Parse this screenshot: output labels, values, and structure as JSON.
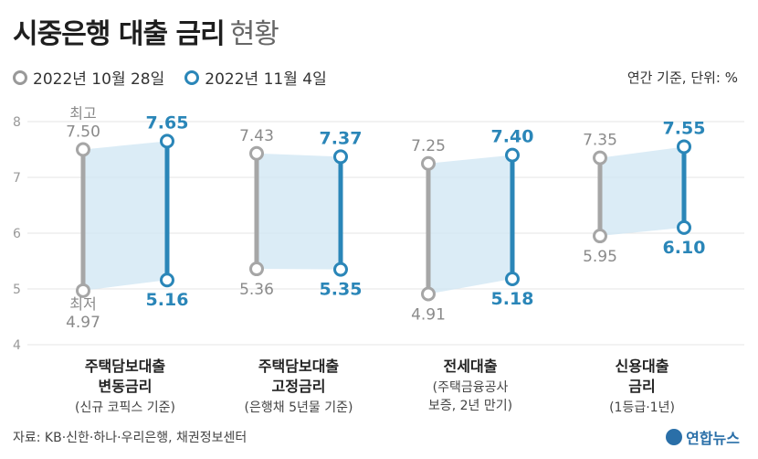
{
  "header": {
    "title": "시중은행 대출 금리",
    "subtitle": "현황"
  },
  "legend": {
    "before": "2022년 10월 28일",
    "after": "2022년 11월 4일"
  },
  "unit": "연간 기준, 단위: %",
  "footer": {
    "source": "자료: KB·신한·하나·우리은행, 채권정보센터",
    "logo": "연합뉴스"
  },
  "colors": {
    "before": "#a6a6a6",
    "after": "#2a86b8",
    "band": "#cfe6f3",
    "grid": "#e6e6e6"
  },
  "chart_data": {
    "type": "range",
    "ylim": [
      4,
      8
    ],
    "yticks": [
      "4",
      "5",
      "6",
      "7",
      "8"
    ],
    "high_label": "최고",
    "low_label": "최저",
    "categories": [
      {
        "name_lines": [
          "주택담보대출",
          "변동금리"
        ],
        "note_lines": [
          "(신규 코픽스 기준)"
        ]
      },
      {
        "name_lines": [
          "주택담보대출",
          "고정금리"
        ],
        "note_lines": [
          "(은행채 5년물 기준)"
        ]
      },
      {
        "name_lines": [
          "전세대출"
        ],
        "note_lines": [
          "(주택금융공사",
          "보증, 2년 만기)"
        ]
      },
      {
        "name_lines": [
          "신용대출",
          "금리"
        ],
        "note_lines": [
          "(1등급·1년)"
        ]
      }
    ],
    "series": [
      {
        "name": "2022년 10월 28일",
        "high": [
          7.5,
          7.43,
          7.25,
          7.35
        ],
        "low": [
          4.97,
          5.36,
          4.91,
          5.95
        ]
      },
      {
        "name": "2022년 11월 4일",
        "high": [
          7.65,
          7.37,
          7.4,
          7.55
        ],
        "low": [
          5.16,
          5.35,
          5.18,
          6.1
        ]
      }
    ],
    "grid": true,
    "legend_position": "top-left"
  }
}
